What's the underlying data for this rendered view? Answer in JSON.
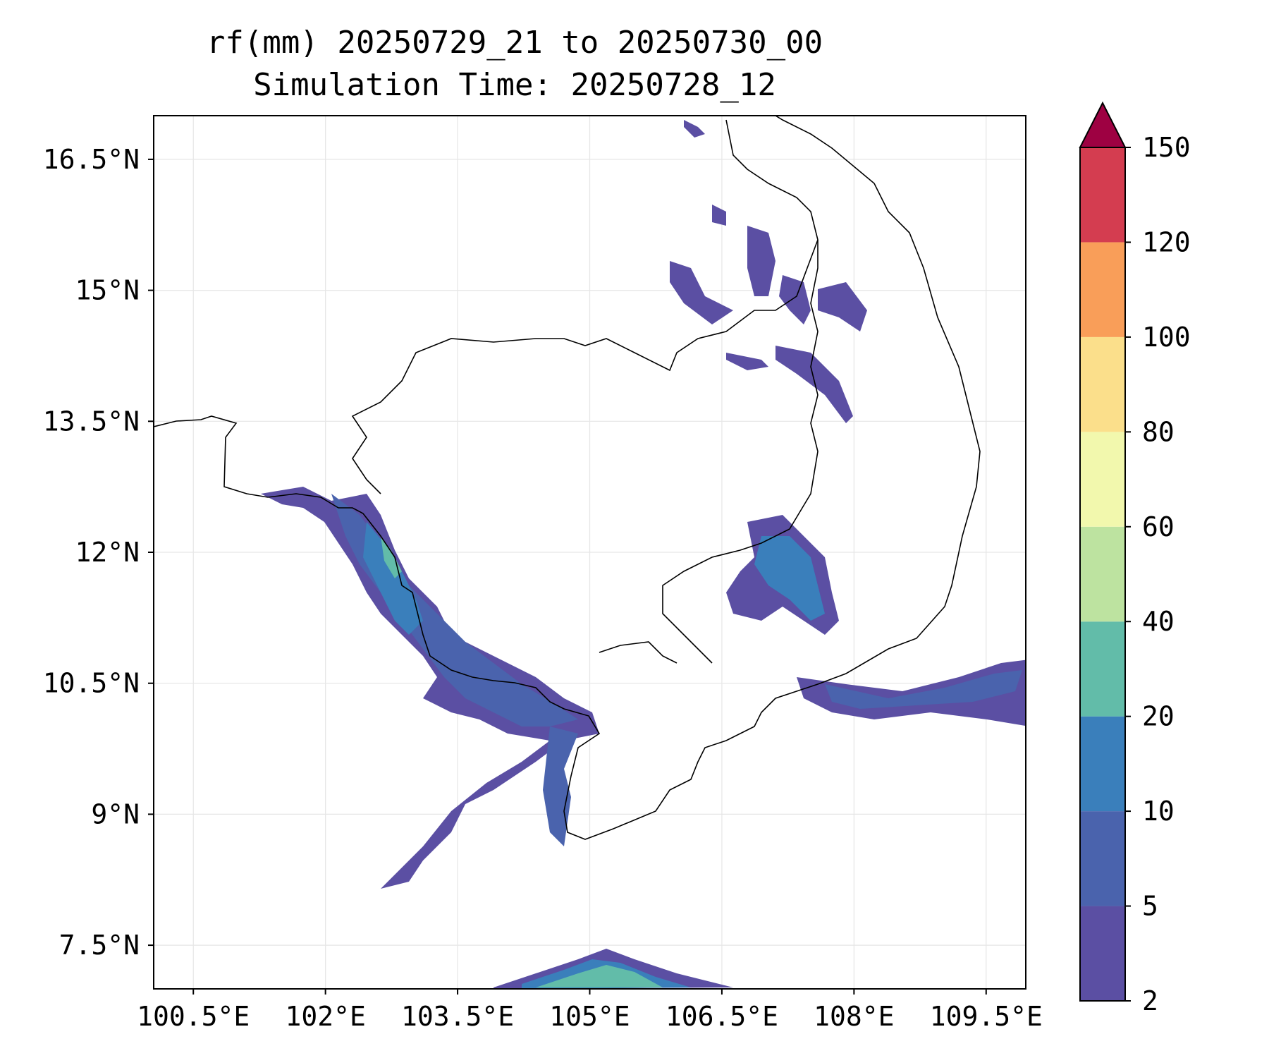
{
  "title": {
    "line1": "rf(mm) 20250729_21 to 20250730_00",
    "line2": "Simulation Time: 20250728_12"
  },
  "map": {
    "lon_ticks": [
      "100.5°E",
      "102°E",
      "103.5°E",
      "105°E",
      "106.5°E",
      "108°E",
      "109.5°E"
    ],
    "lat_ticks": [
      "16.5°N",
      "15°N",
      "13.5°N",
      "12°N",
      "10.5°N",
      "9°N",
      "7.5°N"
    ],
    "lon_range": [
      100.05,
      109.95
    ],
    "lat_range": [
      7.0,
      17.0
    ],
    "gridlines": true
  },
  "colorbar": {
    "levels": [
      "2",
      "5",
      "10",
      "20",
      "40",
      "60",
      "80",
      "100",
      "120",
      "150"
    ],
    "colors": [
      "#5b4fa3",
      "#4a63ad",
      "#3a7fbb",
      "#62bca9",
      "#bde3a0",
      "#f2f8ad",
      "#fbdf8b",
      "#f99e59",
      "#d43d50",
      "#9e0142"
    ],
    "extend": "max",
    "extend_color": "#9e0142"
  },
  "colors": {
    "frame": "#000000",
    "coastline": "#000000",
    "grid": "#e6e6e6"
  }
}
